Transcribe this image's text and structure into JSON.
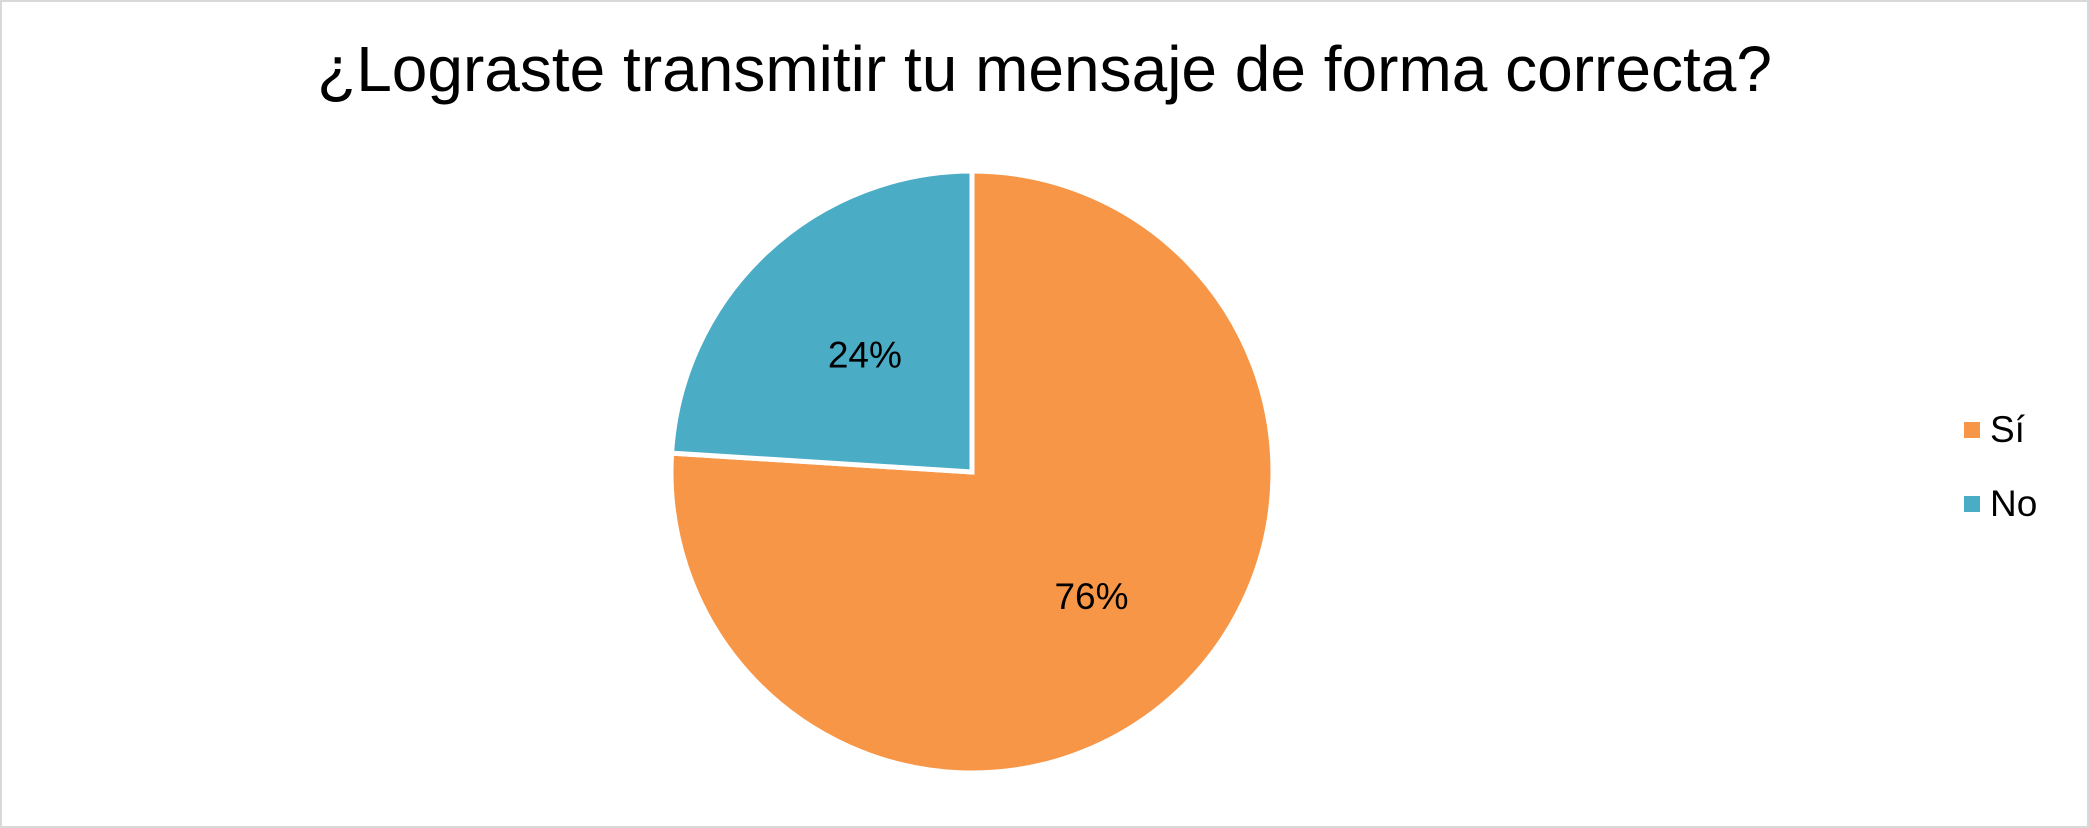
{
  "chart_data": {
    "type": "pie",
    "title": "¿Lograste transmitir tu mensaje de forma correcta?",
    "categories": [
      "Sí",
      "No"
    ],
    "values": [
      76,
      24
    ],
    "labels": [
      "76%",
      "24%"
    ],
    "colors": [
      "#F79646",
      "#4BACC6"
    ],
    "legend_position": "right"
  }
}
